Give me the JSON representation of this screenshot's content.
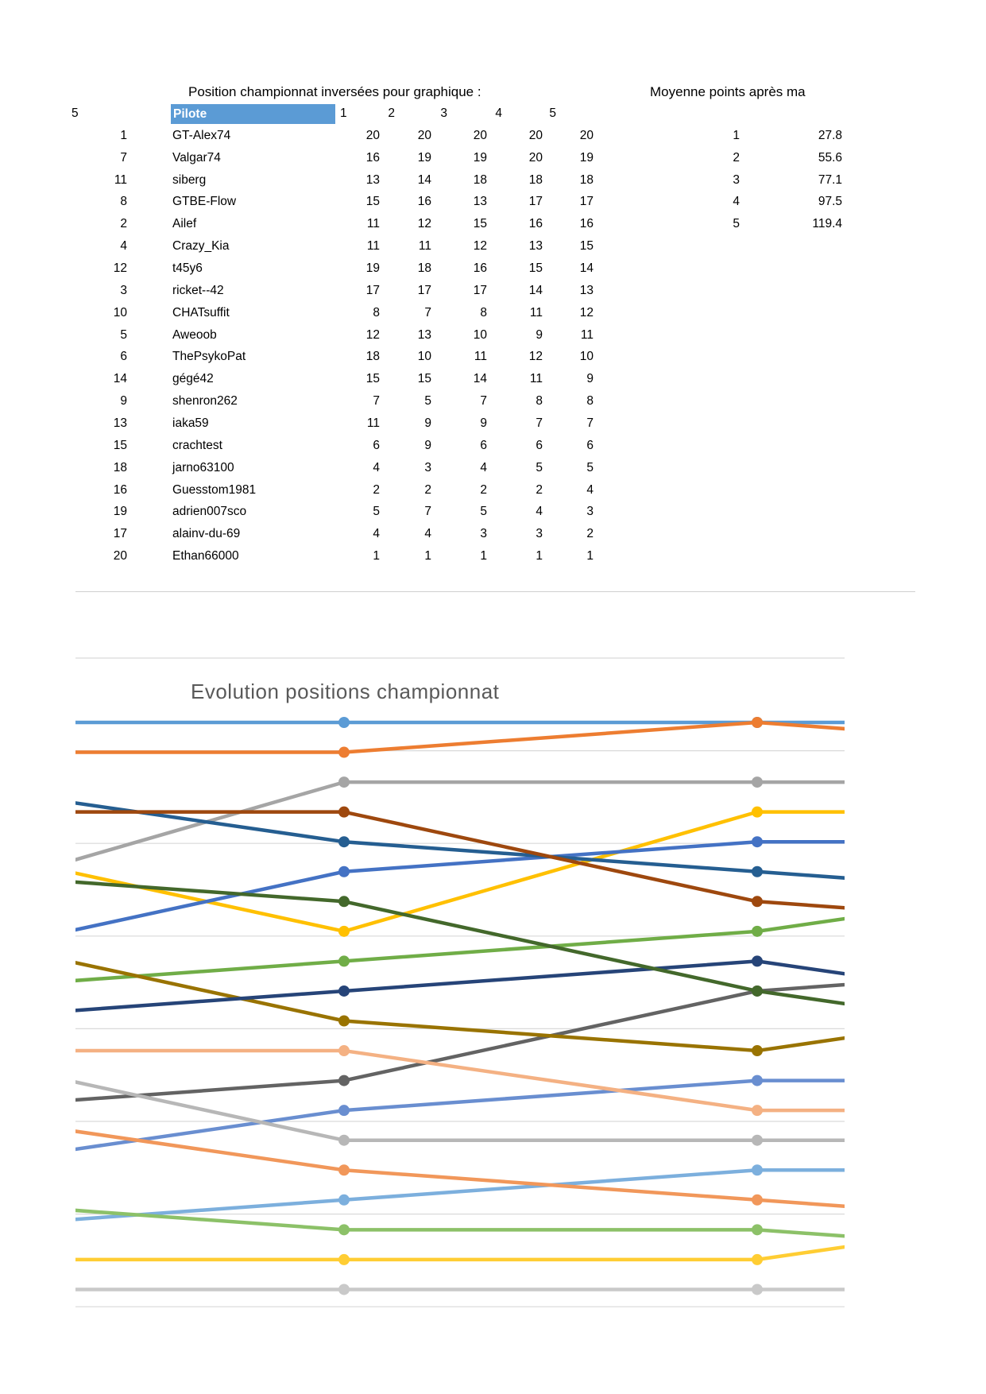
{
  "page": {
    "left_title": "Position championnat inversées pour graphique :",
    "right_title": "Moyenne points après ma",
    "corner_value": "5"
  },
  "left_table": {
    "pilot_header": "Pilote",
    "race_headers": [
      "1",
      "2",
      "3",
      "4",
      "5"
    ],
    "rows": [
      {
        "id": "1",
        "pilot": "GT-Alex74",
        "values": [
          20,
          20,
          20,
          20,
          20
        ]
      },
      {
        "id": "7",
        "pilot": "Valgar74",
        "values": [
          16,
          19,
          19,
          20,
          19
        ]
      },
      {
        "id": "11",
        "pilot": "siberg",
        "values": [
          13,
          14,
          18,
          18,
          18
        ]
      },
      {
        "id": "8",
        "pilot": "GTBE-Flow",
        "values": [
          15,
          16,
          13,
          17,
          17
        ]
      },
      {
        "id": "2",
        "pilot": "Ailef",
        "values": [
          11,
          12,
          15,
          16,
          16
        ]
      },
      {
        "id": "4",
        "pilot": "Crazy_Kia",
        "values": [
          11,
          11,
          12,
          13,
          15
        ]
      },
      {
        "id": "12",
        "pilot": "t45y6",
        "values": [
          19,
          18,
          16,
          15,
          14
        ]
      },
      {
        "id": "3",
        "pilot": "ricket--42",
        "values": [
          17,
          17,
          17,
          14,
          13
        ]
      },
      {
        "id": "10",
        "pilot": "CHATsuffit",
        "values": [
          8,
          7,
          8,
          11,
          12
        ]
      },
      {
        "id": "5",
        "pilot": "Aweoob",
        "values": [
          12,
          13,
          10,
          9,
          11
        ]
      },
      {
        "id": "6",
        "pilot": "ThePsykoPat",
        "values": [
          18,
          10,
          11,
          12,
          10
        ]
      },
      {
        "id": "14",
        "pilot": "gégé42",
        "values": [
          15,
          15,
          14,
          11,
          9
        ]
      },
      {
        "id": "9",
        "pilot": "shenron262",
        "values": [
          7,
          5,
          7,
          8,
          8
        ]
      },
      {
        "id": "13",
        "pilot": "iaka59",
        "values": [
          11,
          9,
          9,
          7,
          7
        ]
      },
      {
        "id": "15",
        "pilot": "crachtest",
        "values": [
          6,
          9,
          6,
          6,
          6
        ]
      },
      {
        "id": "18",
        "pilot": "jarno63100",
        "values": [
          4,
          3,
          4,
          5,
          5
        ]
      },
      {
        "id": "16",
        "pilot": "Guesstom1981",
        "values": [
          2,
          2,
          2,
          2,
          4
        ]
      },
      {
        "id": "19",
        "pilot": "adrien007sco",
        "values": [
          5,
          7,
          5,
          4,
          3
        ]
      },
      {
        "id": "17",
        "pilot": "alainv-du-69",
        "values": [
          4,
          4,
          3,
          3,
          2
        ]
      },
      {
        "id": "20",
        "pilot": "Ethan66000",
        "values": [
          1,
          1,
          1,
          1,
          1
        ]
      }
    ]
  },
  "averages_table": {
    "rows": [
      {
        "race": "1",
        "avg": "27.8"
      },
      {
        "race": "2",
        "avg": "55.6"
      },
      {
        "race": "3",
        "avg": "77.1"
      },
      {
        "race": "4",
        "avg": "97.5"
      },
      {
        "race": "5",
        "avg": "119.4"
      }
    ]
  },
  "chart_data": {
    "type": "line",
    "title": "Evolution positions championnat",
    "x": [
      1,
      2,
      3,
      4,
      5
    ],
    "xlabel": "",
    "ylabel": "",
    "ylim": [
      1,
      20
    ],
    "grid": true,
    "legend_position": "none",
    "note": "y = inverted championship position (20 = leader); chart is clipped, markers visible for races 3 and 4",
    "series": [
      {
        "name": "GT-Alex74",
        "color": "#5B9BD5",
        "values": [
          20,
          20,
          20,
          20,
          20
        ]
      },
      {
        "name": "Valgar74",
        "color": "#ED7D31",
        "values": [
          16,
          19,
          19,
          20,
          19
        ]
      },
      {
        "name": "siberg",
        "color": "#A5A5A5",
        "values": [
          13,
          14,
          18,
          18,
          18
        ]
      },
      {
        "name": "GTBE-Flow",
        "color": "#FFC000",
        "values": [
          15,
          16,
          13,
          17,
          17
        ]
      },
      {
        "name": "Ailef",
        "color": "#4472C4",
        "values": [
          11,
          12,
          15,
          16,
          16
        ]
      },
      {
        "name": "Crazy_Kia",
        "color": "#70AD47",
        "values": [
          11,
          11,
          12,
          13,
          15
        ]
      },
      {
        "name": "t45y6",
        "color": "#255E91",
        "values": [
          19,
          18,
          16,
          15,
          14
        ]
      },
      {
        "name": "ricket--42",
        "color": "#9E480E",
        "values": [
          17,
          17,
          17,
          14,
          13
        ]
      },
      {
        "name": "CHATsuffit",
        "color": "#636363",
        "values": [
          8,
          7,
          8,
          11,
          12
        ]
      },
      {
        "name": "Aweoob",
        "color": "#997300",
        "values": [
          12,
          13,
          10,
          9,
          11
        ]
      },
      {
        "name": "ThePsykoPat",
        "color": "#264478",
        "values": [
          18,
          10,
          11,
          12,
          10
        ]
      },
      {
        "name": "gégé42",
        "color": "#43682B",
        "values": [
          15,
          15,
          14,
          11,
          9
        ]
      },
      {
        "name": "shenron262",
        "color": "#698ED0",
        "values": [
          7,
          5,
          7,
          8,
          8
        ]
      },
      {
        "name": "iaka59",
        "color": "#F4B183",
        "values": [
          11,
          9,
          9,
          7,
          7
        ]
      },
      {
        "name": "crachtest",
        "color": "#B7B7B7",
        "values": [
          6,
          9,
          6,
          6,
          6
        ]
      },
      {
        "name": "jarno63100",
        "color": "#7CAFDD",
        "values": [
          4,
          3,
          4,
          5,
          5
        ]
      },
      {
        "name": "Guesstom1981",
        "color": "#FFCD33",
        "values": [
          2,
          2,
          2,
          2,
          4
        ]
      },
      {
        "name": "adrien007sco",
        "color": "#F1975A",
        "values": [
          5,
          7,
          5,
          4,
          3
        ]
      },
      {
        "name": "alainv-du-69",
        "color": "#8CC168",
        "values": [
          4,
          4,
          3,
          3,
          2
        ]
      },
      {
        "name": "Ethan66000",
        "color": "#C9C9C9",
        "values": [
          1,
          1,
          1,
          1,
          1
        ]
      }
    ]
  }
}
